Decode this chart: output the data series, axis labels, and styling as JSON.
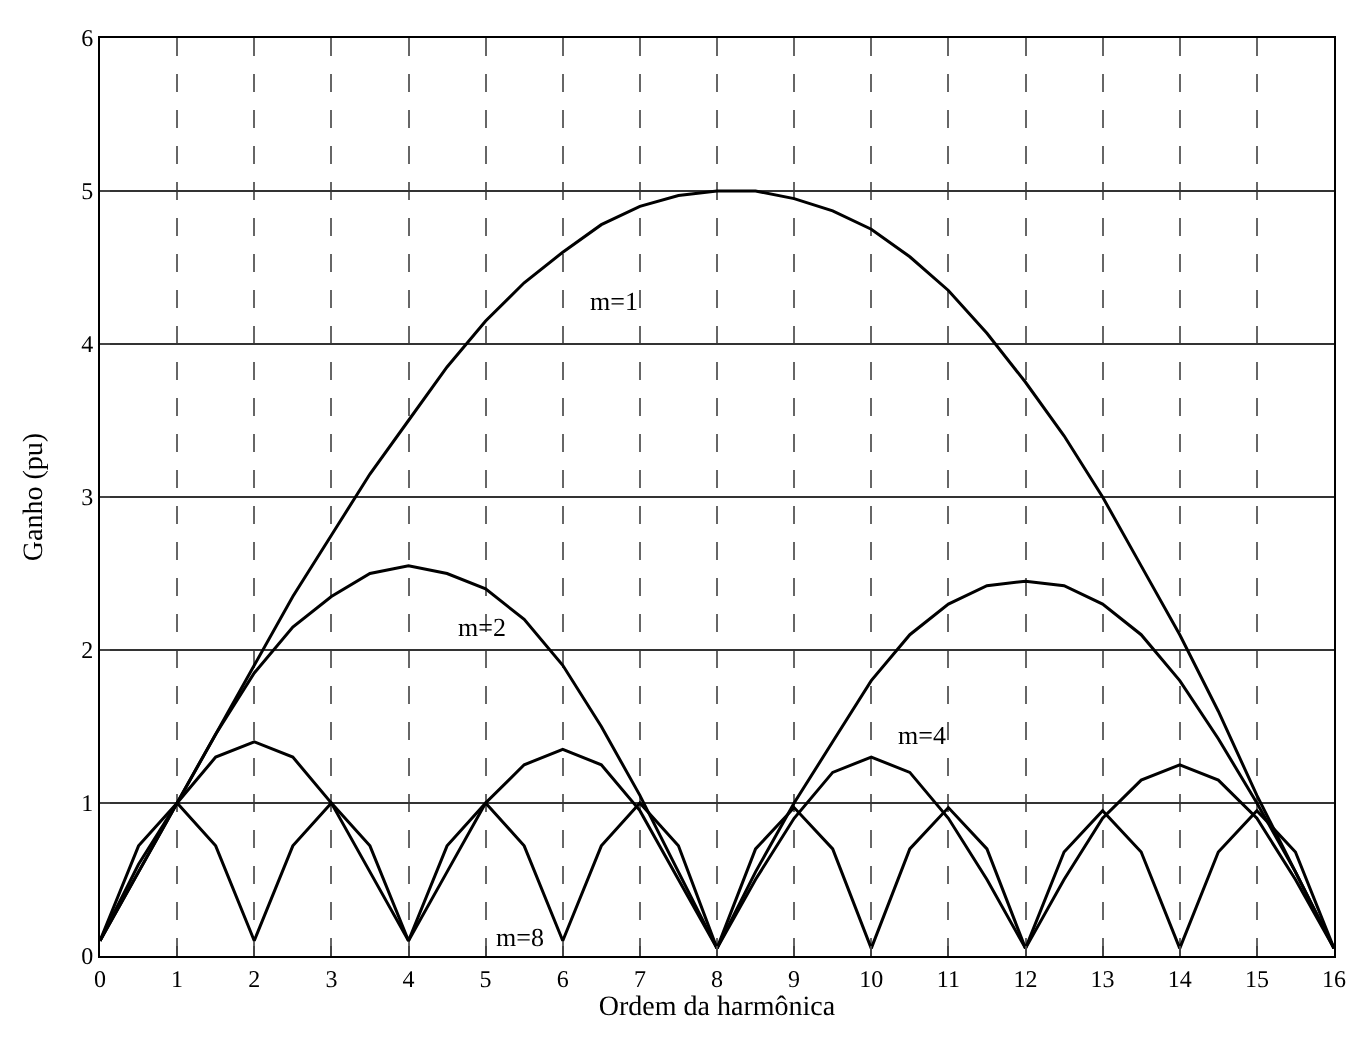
{
  "chart_data": {
    "type": "line",
    "xlabel": "Ordem da harmônica",
    "ylabel": "Ganho (pu)",
    "xlim": [
      0,
      16
    ],
    "ylim": [
      0,
      6
    ],
    "xticks": [
      0,
      1,
      2,
      3,
      4,
      5,
      6,
      7,
      8,
      9,
      10,
      11,
      12,
      13,
      14,
      15,
      16
    ],
    "yticks": [
      0,
      1,
      2,
      3,
      4,
      5,
      6
    ],
    "grid": true,
    "legend": false,
    "marker": "none",
    "line_style": "solid",
    "x": [
      0,
      0.5,
      1,
      1.5,
      2,
      2.5,
      3,
      3.5,
      4,
      4.5,
      5,
      5.5,
      6,
      6.5,
      7,
      7.5,
      8,
      8.5,
      9,
      9.5,
      10,
      10.5,
      11,
      11.5,
      12,
      12.5,
      13,
      13.5,
      14,
      14.5,
      15,
      15.5,
      16
    ],
    "series": [
      {
        "name": "m=1",
        "color": "#000000",
        "values": [
          0.1,
          0.55,
          1.0,
          1.45,
          1.9,
          2.35,
          2.75,
          3.15,
          3.5,
          3.85,
          4.15,
          4.4,
          4.6,
          4.78,
          4.9,
          4.97,
          5.0,
          5.0,
          4.95,
          4.87,
          4.75,
          4.57,
          4.35,
          4.07,
          3.75,
          3.4,
          3.0,
          2.55,
          2.1,
          1.6,
          1.05,
          0.55,
          0.05
        ]
      },
      {
        "name": "m=2",
        "color": "#000000",
        "values": [
          0.1,
          0.55,
          1.0,
          1.45,
          1.85,
          2.15,
          2.35,
          2.5,
          2.55,
          2.5,
          2.4,
          2.2,
          1.9,
          1.5,
          1.05,
          0.55,
          0.05,
          0.55,
          1.0,
          1.4,
          1.8,
          2.1,
          2.3,
          2.42,
          2.45,
          2.42,
          2.3,
          2.1,
          1.8,
          1.42,
          1.0,
          0.55,
          0.05
        ]
      },
      {
        "name": "m=4",
        "color": "#000000",
        "values": [
          0.1,
          0.6,
          1.0,
          1.3,
          1.4,
          1.3,
          1.0,
          0.55,
          0.1,
          0.55,
          1.0,
          1.25,
          1.35,
          1.25,
          0.95,
          0.5,
          0.05,
          0.5,
          0.9,
          1.2,
          1.3,
          1.2,
          0.9,
          0.5,
          0.05,
          0.5,
          0.9,
          1.15,
          1.25,
          1.15,
          0.9,
          0.5,
          0.05
        ]
      },
      {
        "name": "m=8",
        "color": "#000000",
        "values": [
          0.1,
          0.72,
          1.0,
          0.72,
          0.1,
          0.72,
          1.0,
          0.72,
          0.1,
          0.72,
          1.0,
          0.72,
          0.1,
          0.72,
          1.0,
          0.72,
          0.05,
          0.7,
          0.97,
          0.7,
          0.05,
          0.7,
          0.97,
          0.7,
          0.05,
          0.68,
          0.95,
          0.68,
          0.05,
          0.68,
          0.95,
          0.68,
          0.05
        ]
      }
    ]
  }
}
